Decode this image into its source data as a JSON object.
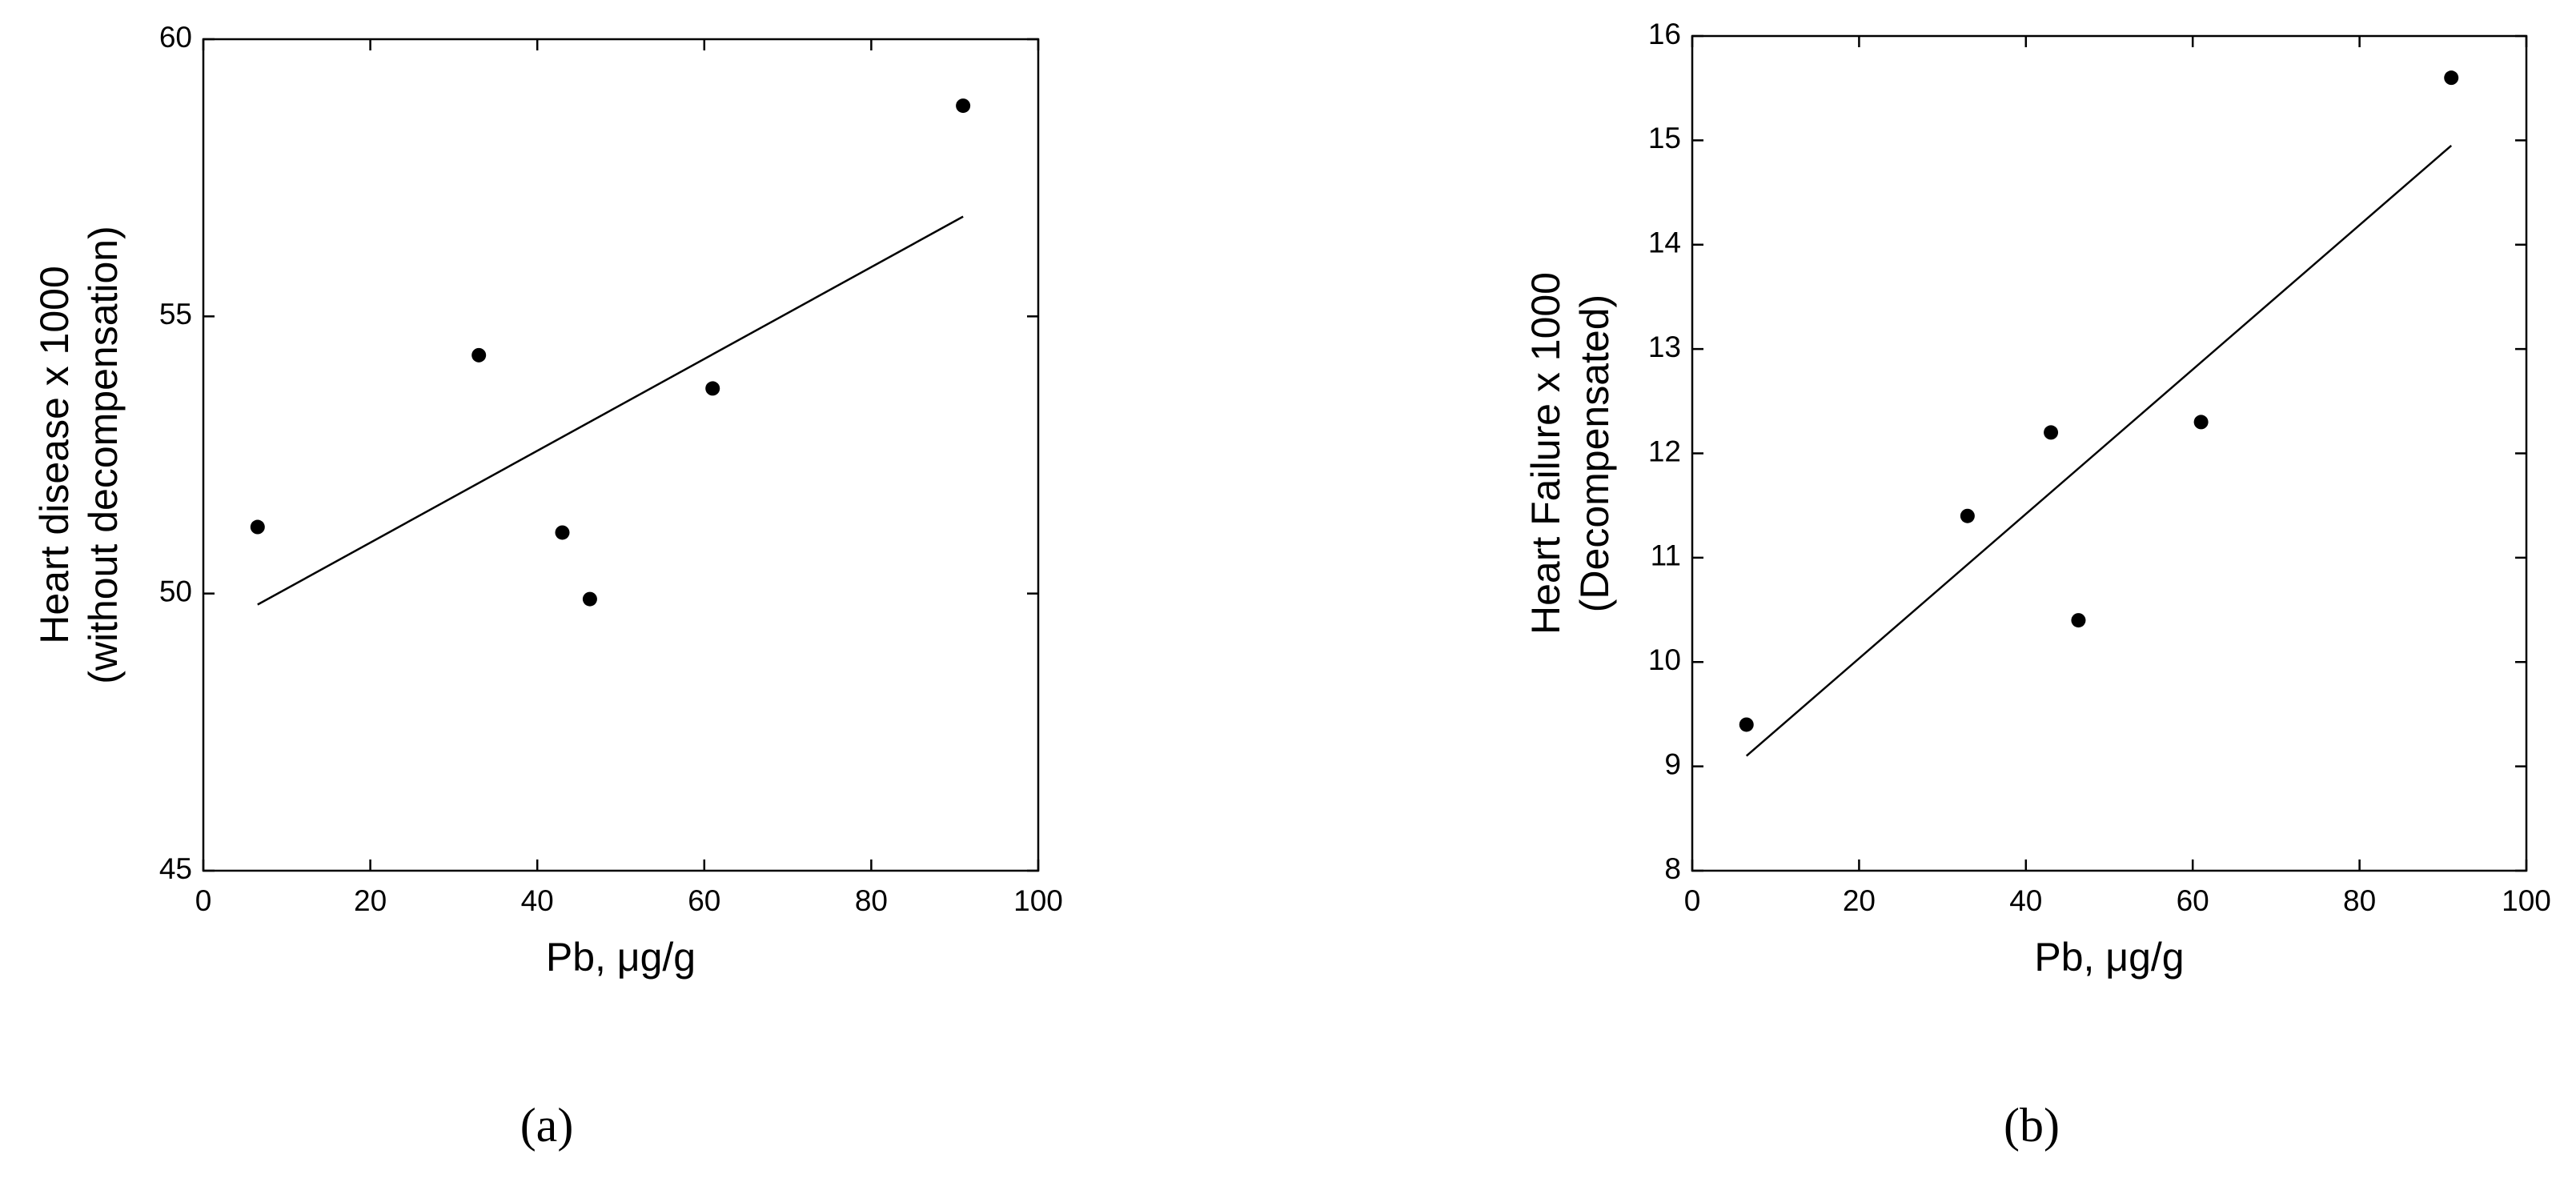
{
  "chart_data": [
    {
      "type": "scatter",
      "panel_label": "(a)",
      "x_label": "Pb, μg/g",
      "y_label": [
        "Heart disease x 1000",
        "(without decompensation)"
      ],
      "x": [
        6.5,
        33,
        43,
        46.3,
        61,
        91
      ],
      "y": [
        51.2,
        54.3,
        51.1,
        49.9,
        53.7,
        58.8
      ],
      "trend_line": {
        "x": [
          6.5,
          91
        ],
        "y": [
          49.8,
          56.8
        ]
      },
      "color": "#000000",
      "xlim": [
        0,
        100
      ],
      "xticks": [
        0,
        20,
        40,
        60,
        80,
        100
      ],
      "ylim": [
        45,
        60
      ],
      "yticks": [
        45,
        50,
        55,
        60
      ]
    },
    {
      "type": "scatter",
      "panel_label": "(b)",
      "x_label": "Pb, μg/g",
      "y_label": [
        "Heart Failure x 1000",
        "(Decompensated)"
      ],
      "x": [
        6.5,
        33,
        43,
        46.3,
        61,
        91
      ],
      "y": [
        9.4,
        11.4,
        12.2,
        10.4,
        12.3,
        15.6
      ],
      "trend_line": {
        "x": [
          6.5,
          91
        ],
        "y": [
          9.1,
          14.95
        ]
      },
      "color": "#000000",
      "xlim": [
        0,
        100
      ],
      "xticks": [
        0,
        20,
        40,
        60,
        80,
        100
      ],
      "ylim": [
        8,
        16
      ],
      "yticks": [
        8,
        9,
        10,
        11,
        12,
        13,
        14,
        15,
        16
      ]
    }
  ]
}
